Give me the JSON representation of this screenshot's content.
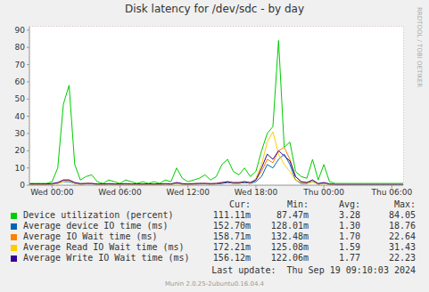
{
  "chart_data": {
    "type": "line",
    "title": "Disk latency for /dev/sdc - by day",
    "x": [
      -2,
      -1.5,
      -1,
      -0.5,
      0,
      0.5,
      1,
      1.5,
      2,
      2.5,
      3,
      3.5,
      4,
      4.5,
      5,
      5.5,
      6,
      6.5,
      7,
      7.5,
      8,
      8.5,
      9,
      9.5,
      10,
      10.5,
      11,
      11.5,
      12,
      12.5,
      13,
      13.5,
      14,
      14.5,
      15,
      15.5,
      16,
      16.5,
      17,
      17.5,
      18,
      18.5,
      19,
      19.5,
      20,
      20.5,
      21,
      21.5,
      22,
      22.5,
      23,
      23.5,
      24,
      24.5,
      25,
      25.5,
      26,
      26.5,
      27,
      27.5,
      28,
      28.5,
      29,
      29.5,
      30,
      30.5,
      31
    ],
    "xlim": [
      -2,
      31
    ],
    "xticks": [
      {
        "value": 0,
        "label": "Wed 00:00"
      },
      {
        "value": 6,
        "label": "Wed 06:00"
      },
      {
        "value": 12,
        "label": "Wed 12:00"
      },
      {
        "value": 18,
        "label": "Wed 18:00"
      },
      {
        "value": 24,
        "label": "Thu 00:00"
      },
      {
        "value": 30,
        "label": "Thu 06:00"
      }
    ],
    "ylim": [
      0,
      92
    ],
    "yticks": [
      0,
      10,
      20,
      30,
      40,
      50,
      60,
      70,
      80,
      90
    ],
    "grid": true,
    "stats_header": [
      "Cur:",
      "Min:",
      "Avg:",
      "Max:"
    ],
    "series": [
      {
        "name": "Device utilization (percent)",
        "color": "#00cc00",
        "stats": [
          "111.11m",
          "87.47m",
          "3.28",
          "84.05"
        ],
        "values": [
          1,
          1,
          1,
          1,
          2,
          10,
          47,
          58,
          12,
          3,
          5,
          6,
          2,
          1,
          3,
          2,
          1,
          3,
          2,
          1,
          2,
          1,
          2,
          1,
          3,
          2,
          10,
          4,
          2,
          3,
          4,
          6,
          3,
          5,
          12,
          15,
          8,
          6,
          10,
          5,
          8,
          20,
          30,
          34,
          84,
          22,
          25,
          8,
          5,
          4,
          15,
          3,
          12,
          2,
          1,
          1,
          1,
          1,
          1,
          1,
          1,
          1,
          1,
          1,
          1,
          1,
          1
        ]
      },
      {
        "name": "Average device IO time (ms)",
        "color": "#0066b3",
        "stats": [
          "152.70m",
          "128.01m",
          "1.30",
          "18.76"
        ],
        "values": [
          0.5,
          0.5,
          0.5,
          0.5,
          0.6,
          1,
          2,
          2,
          1,
          0.6,
          0.8,
          0.8,
          0.5,
          0.5,
          0.6,
          0.5,
          0.5,
          0.6,
          0.5,
          0.5,
          0.5,
          0.5,
          0.5,
          0.5,
          0.6,
          0.5,
          1,
          0.6,
          0.5,
          0.6,
          0.7,
          0.8,
          0.6,
          0.7,
          1,
          1.5,
          1,
          1,
          1.5,
          1,
          2,
          5,
          12,
          10,
          15,
          18,
          12,
          3,
          1,
          1,
          2,
          0.6,
          1,
          0.5,
          0.3,
          0.3,
          0.3,
          0.3,
          0.3,
          0.3,
          0.3,
          0.3,
          0.3,
          0.3,
          0.3,
          0.3,
          0.3
        ]
      },
      {
        "name": "Average IO Wait time (ms)",
        "color": "#ff8000",
        "stats": [
          "158.71m",
          "132.48m",
          "1.70",
          "22.64"
        ],
        "values": [
          0.6,
          0.6,
          0.6,
          0.6,
          0.8,
          1.5,
          3,
          3,
          1.5,
          0.8,
          1,
          1,
          0.6,
          0.6,
          0.8,
          0.6,
          0.6,
          0.8,
          0.6,
          0.6,
          0.6,
          0.6,
          0.6,
          0.6,
          0.8,
          0.6,
          1.5,
          0.8,
          0.6,
          0.8,
          1,
          1,
          0.8,
          1,
          1.5,
          2,
          1.5,
          1.5,
          2,
          1.5,
          3,
          8,
          15,
          13,
          20,
          22,
          15,
          5,
          2,
          1.5,
          3,
          0.8,
          1.5,
          0.6,
          0.4,
          0.4,
          0.4,
          0.4,
          0.4,
          0.4,
          0.4,
          0.4,
          0.4,
          0.4,
          0.4,
          0.4,
          0.4
        ]
      },
      {
        "name": "Average Read IO Wait time (ms)",
        "color": "#ffcc00",
        "stats": [
          "172.21m",
          "125.08m",
          "1.59",
          "31.43"
        ],
        "values": [
          0.4,
          0.4,
          0.4,
          0.4,
          0.5,
          1,
          2,
          2.5,
          1,
          0.5,
          0.8,
          0.8,
          0.4,
          0.4,
          0.5,
          0.4,
          0.4,
          0.5,
          0.4,
          0.4,
          0.4,
          0.4,
          0.4,
          0.4,
          0.5,
          0.4,
          1,
          0.5,
          0.4,
          0.5,
          0.8,
          0.8,
          0.5,
          0.8,
          1.5,
          2,
          1,
          1,
          2,
          1,
          4,
          12,
          25,
          31,
          18,
          12,
          8,
          3,
          1.5,
          1,
          2,
          0.5,
          1,
          0.4,
          0.3,
          0.3,
          0.3,
          0.3,
          0.3,
          0.3,
          0.3,
          0.3,
          0.3,
          0.3,
          0.3,
          0.3,
          0.3
        ]
      },
      {
        "name": "Average Write IO Wait time (ms)",
        "color": "#330099",
        "stats": [
          "156.12m",
          "122.06m",
          "1.77",
          "22.23"
        ],
        "values": [
          0.7,
          0.7,
          0.7,
          0.7,
          0.9,
          1.5,
          3,
          3,
          1.5,
          0.9,
          1,
          1,
          0.7,
          0.7,
          0.9,
          0.7,
          0.7,
          0.9,
          0.7,
          0.7,
          0.7,
          0.7,
          0.7,
          0.7,
          0.9,
          0.7,
          1.5,
          0.9,
          0.7,
          0.9,
          1,
          1,
          0.9,
          1,
          1.5,
          2,
          1.5,
          1.5,
          2,
          1.5,
          3,
          10,
          18,
          15,
          20,
          17,
          14,
          5,
          2,
          1.5,
          3,
          0.9,
          1.5,
          0.7,
          0.4,
          0.4,
          0.4,
          0.4,
          0.4,
          0.4,
          0.4,
          0.4,
          0.4,
          0.4,
          0.4,
          0.4,
          0.4
        ]
      }
    ],
    "watermark": "RRDTOOL / TOBI OETIKER",
    "last_update": "Last update:  Thu Sep 19 09:10:03 2024",
    "footer": "Munin 2.0.25-2ubuntu0.16.04.4"
  }
}
